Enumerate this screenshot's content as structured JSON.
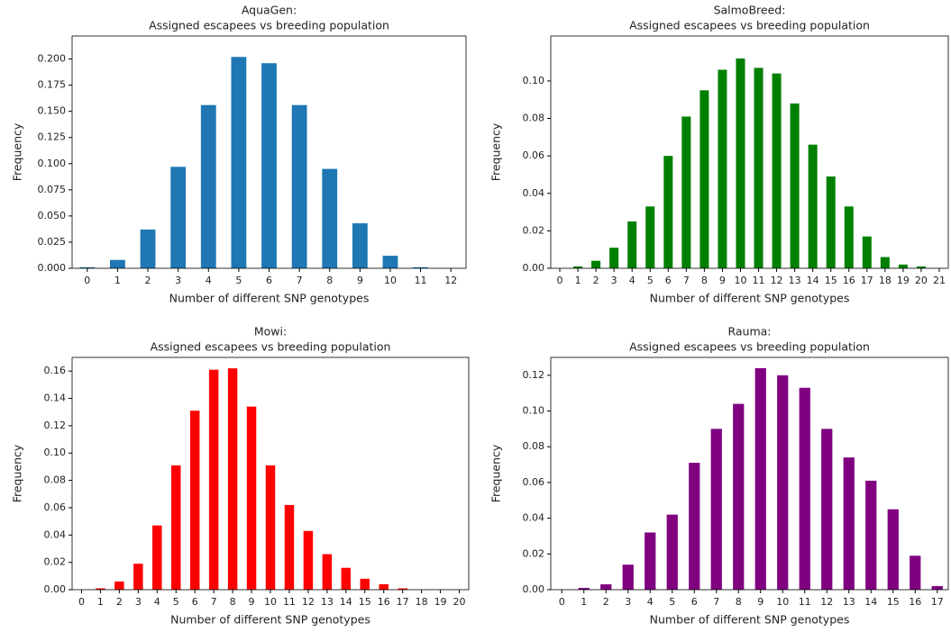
{
  "chart_data": [
    {
      "type": "bar",
      "title": "AquaGen:",
      "subtitle": "Assigned escapees vs breeding population",
      "x_label": "Number of different SNP genotypes",
      "y_label": "Frequency",
      "color": "#1f77b4",
      "categories": [
        "0",
        "1",
        "2",
        "3",
        "4",
        "5",
        "6",
        "7",
        "8",
        "9",
        "10",
        "11",
        "12"
      ],
      "values": [
        0.001,
        0.008,
        0.037,
        0.097,
        0.156,
        0.202,
        0.196,
        0.156,
        0.095,
        0.043,
        0.012,
        0.001,
        0.0
      ],
      "ylim": [
        0,
        0.222
      ],
      "yticks": [
        {
          "value": 0,
          "label": "0.000"
        },
        0.025,
        {
          "value": 0.05,
          "label": "0.050"
        },
        0.075,
        {
          "value": 0.1,
          "label": "0.100"
        },
        0.125,
        {
          "value": 0.15,
          "label": "0.150"
        },
        0.175,
        {
          "value": 0.2,
          "label": "0.200"
        }
      ]
    },
    {
      "type": "bar",
      "title": "SalmoBreed:",
      "subtitle": "Assigned escapees vs breeding population",
      "x_label": "Number of different SNP genotypes",
      "y_label": "Frequency",
      "color": "#008000",
      "categories": [
        "0",
        "1",
        "2",
        "3",
        "4",
        "5",
        "6",
        "7",
        "8",
        "9",
        "10",
        "11",
        "12",
        "13",
        "14",
        "15",
        "16",
        "17",
        "18",
        "19",
        "20",
        "21"
      ],
      "values": [
        0.0,
        0.001,
        0.004,
        0.011,
        0.025,
        0.033,
        0.06,
        0.081,
        0.095,
        0.106,
        0.112,
        0.107,
        0.104,
        0.088,
        0.066,
        0.049,
        0.033,
        0.017,
        0.006,
        0.002,
        0.001,
        0.0
      ],
      "ylim": [
        0,
        0.124
      ],
      "yticks": [
        {
          "value": 0,
          "label": "0.00"
        },
        0.02,
        0.04,
        0.06,
        0.08,
        {
          "value": 0.1,
          "label": "0.10"
        }
      ]
    },
    {
      "type": "bar",
      "title": "Mowi:",
      "subtitle": "Assigned escapees vs breeding population",
      "x_label": "Number of different SNP genotypes",
      "y_label": "Frequency",
      "color": "#ff0000",
      "categories": [
        "0",
        "1",
        "2",
        "3",
        "4",
        "5",
        "6",
        "7",
        "8",
        "9",
        "10",
        "11",
        "12",
        "13",
        "14",
        "15",
        "16",
        "17",
        "18",
        "19",
        "20"
      ],
      "values": [
        0.0,
        0.001,
        0.006,
        0.019,
        0.047,
        0.091,
        0.131,
        0.161,
        0.162,
        0.134,
        0.091,
        0.062,
        0.043,
        0.026,
        0.016,
        0.008,
        0.004,
        0.001,
        0.0,
        0.0,
        0.0
      ],
      "ylim": [
        0,
        0.17
      ],
      "yticks": [
        {
          "value": 0,
          "label": "0.00"
        },
        0.02,
        0.04,
        0.06,
        0.08,
        {
          "value": 0.1,
          "label": "0.10"
        },
        0.12,
        0.14,
        0.16
      ]
    },
    {
      "type": "bar",
      "title": "Rauma:",
      "subtitle": "Assigned escapees vs breeding population",
      "x_label": "Number of different SNP genotypes",
      "y_label": "Frequency",
      "color": "#800080",
      "categories": [
        "0",
        "1",
        "2",
        "3",
        "4",
        "5",
        "6",
        "7",
        "8",
        "9",
        "10",
        "11",
        "12",
        "13",
        "14",
        "15",
        "16",
        "17"
      ],
      "values": [
        0.0,
        0.001,
        0.003,
        0.014,
        0.032,
        0.042,
        0.071,
        0.09,
        0.104,
        0.124,
        0.12,
        0.113,
        0.09,
        0.074,
        0.061,
        0.045,
        0.019,
        0.002
      ],
      "ylim": [
        0,
        0.13
      ],
      "yticks": [
        {
          "value": 0,
          "label": "0.00"
        },
        0.02,
        0.04,
        0.06,
        0.08,
        {
          "value": 0.1,
          "label": "0.10"
        },
        0.12
      ]
    }
  ]
}
